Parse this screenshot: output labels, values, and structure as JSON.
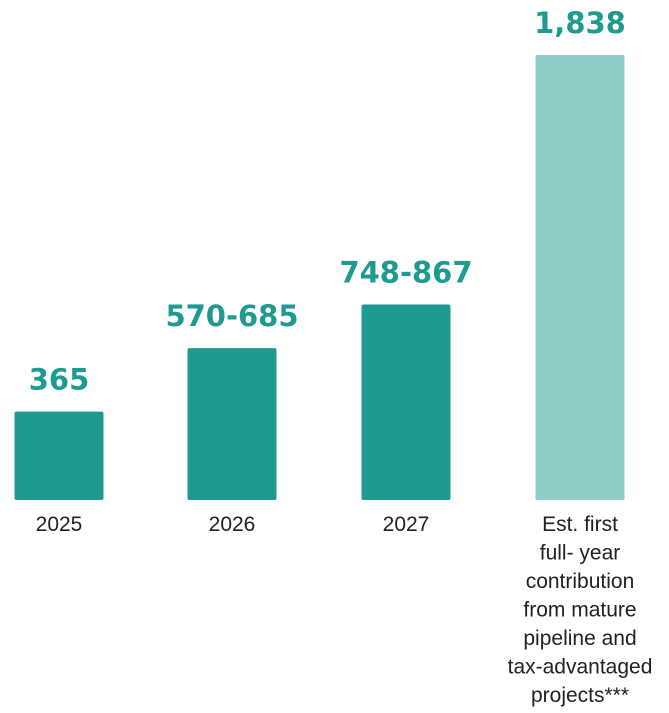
{
  "chart_data": {
    "type": "bar",
    "categories": [
      "2025",
      "2026",
      "2027",
      "Est. first\nfull- year\ncontribution\nfrom mature\npipeline and\ntax-advantaged\nprojects***"
    ],
    "values": [
      365,
      627.5,
      807.5,
      1838
    ],
    "value_labels": [
      "365",
      "570-685",
      "748-867",
      "1,838"
    ],
    "title": "",
    "xlabel": "",
    "ylabel": "",
    "ylim": [
      0,
      1838
    ],
    "grid": false,
    "legend": "none",
    "colors": {
      "bar": "#1e9a91",
      "highlight_bar": "#8fcdc7",
      "label": "#1e9a91",
      "axis_text": "#222222"
    }
  }
}
